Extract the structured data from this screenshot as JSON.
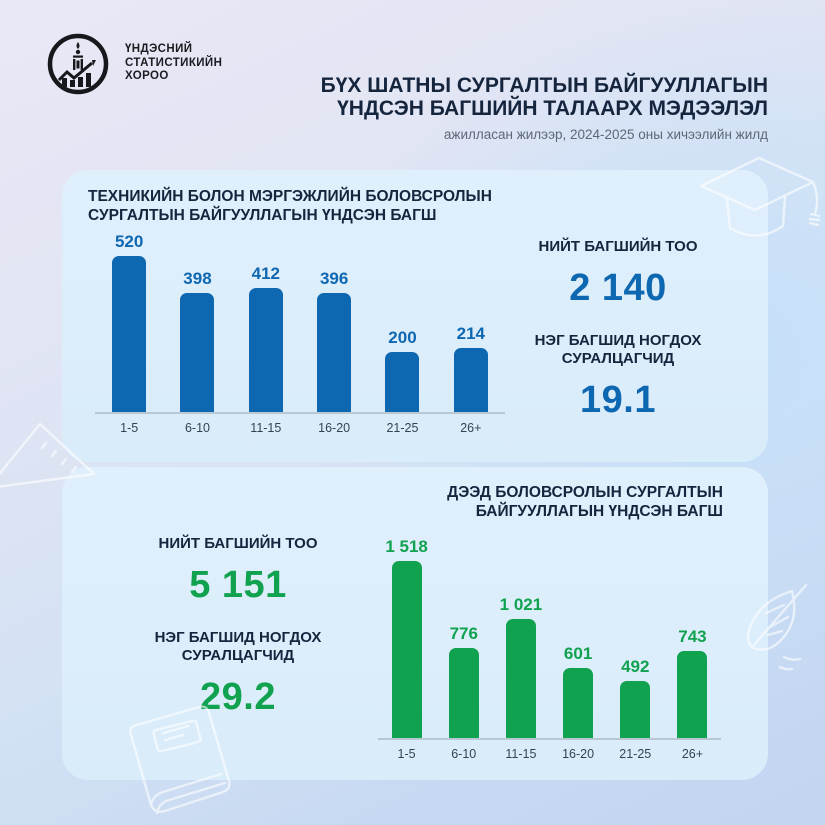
{
  "colors": {
    "blue_accent": "#0e67b1",
    "green_accent": "#10a24f",
    "navy_text": "#16253e",
    "panel_bg": "#dcedfa"
  },
  "header": {
    "logo_line1": "ҮНДЭСНИЙ",
    "logo_line2": "СТАТИСТИКИЙН",
    "logo_line3": "ХОРОО",
    "title_line1": "БҮХ ШАТНЫ СУРГАЛТЫН БАЙГУУЛЛАГЫН",
    "title_line2": "ҮНДСЭН БАГШИЙН ТАЛААРХ МЭДЭЭЛЭЛ",
    "subtitle": "ажилласан жилээр, 2024-2025 оны хичээлийн жилд"
  },
  "panel_tvet": {
    "heading_line1": "ТЕХНИКИЙН БОЛОН МЭРГЭЖЛИЙН БОЛОВСРОЛЫН",
    "heading_line2": "СУРГАЛТЫН БАЙГУУЛЛАГЫН ҮНДСЭН БАГШ",
    "stat1_label": "НИЙТ БАГШИЙН ТОО",
    "stat1_value": "2 140",
    "stat2_label_line1": "НЭГ БАГШИД НОГДОХ",
    "stat2_label_line2": "СУРАЛЦАГЧИД",
    "stat2_value": "19.1"
  },
  "panel_higher": {
    "heading_line1": "ДЭЭД БОЛОВСРОЛЫН СУРГАЛТЫН",
    "heading_line2": "БАЙГУУЛЛАГЫН ҮНДСЭН БАГШ",
    "stat1_label": "НИЙТ БАГШИЙН ТОО",
    "stat1_value": "5 151",
    "stat2_label_line1": "НЭГ БАГШИД НОГДОХ",
    "stat2_label_line2": "СУРАЛЦАГЧИД",
    "stat2_value": "29.2"
  },
  "chart_data": [
    {
      "type": "bar",
      "title": "ТЕХНИКИЙН БОЛОН МЭРГЭЖЛИЙН БОЛОВСРОЛЫН СУРГАЛТЫН БАЙГУУЛЛАГЫН ҮНДСЭН БАГШ",
      "categories": [
        "1-5",
        "6-10",
        "11-15",
        "16-20",
        "21-25",
        "26+"
      ],
      "values": [
        520,
        398,
        412,
        396,
        200,
        214
      ],
      "value_labels": [
        "520",
        "398",
        "412",
        "396",
        "200",
        "214"
      ],
      "bar_color": "#0e67b1",
      "xlabel": "",
      "ylabel": "",
      "ylim": [
        0,
        560
      ],
      "grid": false,
      "legend": false
    },
    {
      "type": "bar",
      "title": "ДЭЭД БОЛОВСРОЛЫН СУРГАЛТЫН БАЙГУУЛЛАГЫН ҮНДСЭН БАГШ",
      "categories": [
        "1-5",
        "6-10",
        "11-15",
        "16-20",
        "21-25",
        "26+"
      ],
      "values": [
        1518,
        776,
        1021,
        601,
        492,
        743
      ],
      "value_labels": [
        "1 518",
        "776",
        "1 021",
        "601",
        "492",
        "743"
      ],
      "bar_color": "#10a24f",
      "xlabel": "",
      "ylabel": "",
      "ylim": [
        0,
        1650
      ],
      "grid": false,
      "legend": false
    }
  ]
}
